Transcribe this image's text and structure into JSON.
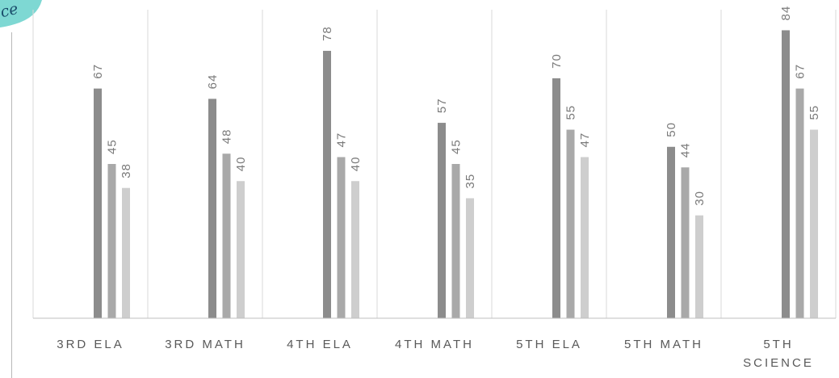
{
  "chart_data": {
    "type": "bar",
    "title": "",
    "xlabel": "",
    "ylabel": "",
    "ylim": [
      0,
      90
    ],
    "grid": "vertical separators between categories",
    "legend": "none",
    "categories": [
      "3RD ELA",
      "3RD MATH",
      "4TH ELA",
      "4TH MATH",
      "5TH ELA",
      "5TH MATH",
      "5TH SCIENCE"
    ],
    "series": [
      {
        "values": [
          67,
          64,
          78,
          57,
          70,
          50,
          84
        ],
        "color": "#8c8c8c"
      },
      {
        "values": [
          45,
          48,
          47,
          45,
          55,
          44,
          67
        ],
        "color": "#a9a9a9"
      },
      {
        "values": [
          38,
          40,
          40,
          35,
          47,
          30,
          55
        ],
        "color": "#cecece"
      }
    ]
  },
  "logo": {
    "text": "ce"
  },
  "colors": {
    "logo_fill": "#7ed8d3",
    "logo_text": "#1a4d6b",
    "axis": "#bfbfbf",
    "gridline": "#d9d9d9"
  }
}
